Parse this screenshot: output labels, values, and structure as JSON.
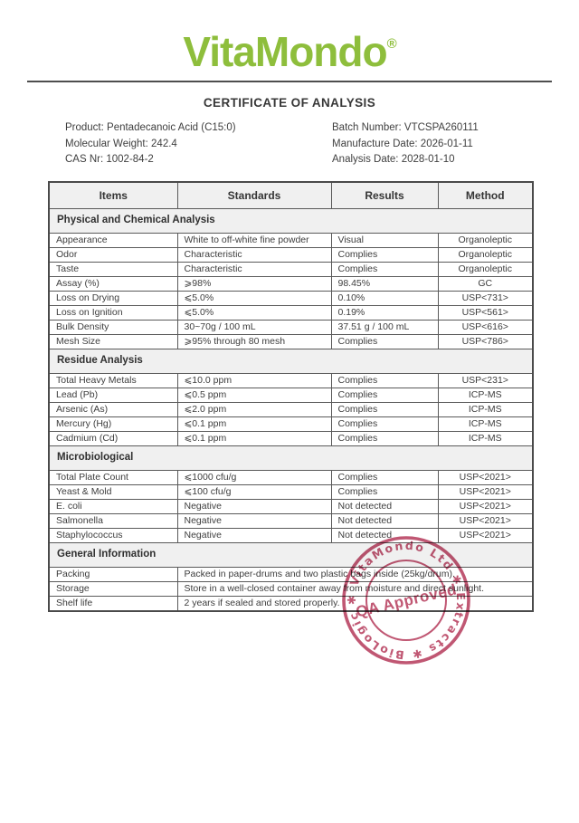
{
  "logo": {
    "text": "VitaMondo",
    "registered": "®",
    "color": "#8ebe3c"
  },
  "title": "CERTIFICATE OF ANALYSIS",
  "info": {
    "left": [
      "Product: Pentadecanoic Acid (C15:0)",
      "Molecular Weight: 242.4",
      "CAS Nr: 1002-84-2"
    ],
    "right": [
      "Batch Number: VTCSPA260111",
      "Manufacture Date: 2026-01-11",
      "Analysis Date: 2028-01-10"
    ]
  },
  "table": {
    "columns": [
      "Items",
      "Standards",
      "Results",
      "Method"
    ],
    "sections": [
      {
        "title": "Physical and Chemical Analysis",
        "rows": [
          [
            "Appearance",
            "White to off-white fine powder",
            "Visual",
            "Organoleptic"
          ],
          [
            "Odor",
            "Characteristic",
            "Complies",
            "Organoleptic"
          ],
          [
            "Taste",
            "Characteristic",
            "Complies",
            "Organoleptic"
          ],
          [
            "Assay (%)",
            "⩾98%",
            "98.45%",
            "GC"
          ],
          [
            "Loss on Drying",
            "⩽5.0%",
            "0.10%",
            "USP<731>"
          ],
          [
            "Loss on Ignition",
            "⩽5.0%",
            "0.19%",
            "USP<561>"
          ],
          [
            "Bulk Density",
            "30~70g / 100 mL",
            "37.51 g / 100 mL",
            "USP<616>"
          ],
          [
            "Mesh Size",
            "⩾95% through 80 mesh",
            "Complies",
            "USP<786>"
          ]
        ]
      },
      {
        "title": "Residue Analysis",
        "rows": [
          [
            "Total Heavy Metals",
            "⩽10.0 ppm",
            "Complies",
            "USP<231>"
          ],
          [
            "Lead (Pb)",
            "⩽0.5 ppm",
            "Complies",
            "ICP-MS"
          ],
          [
            "Arsenic (As)",
            "⩽2.0 ppm",
            "Complies",
            "ICP-MS"
          ],
          [
            "Mercury (Hg)",
            "⩽0.1 ppm",
            "Complies",
            "ICP-MS"
          ],
          [
            "Cadmium (Cd)",
            "⩽0.1 ppm",
            "Complies",
            "ICP-MS"
          ]
        ]
      },
      {
        "title": "Microbiological",
        "rows": [
          [
            "Total Plate Count",
            "⩽1000 cfu/g",
            "Complies",
            "USP<2021>"
          ],
          [
            "Yeast & Mold",
            "⩽100 cfu/g",
            "Complies",
            "USP<2021>"
          ],
          [
            "E. coli",
            "Negative",
            "Not detected",
            "USP<2021>"
          ],
          [
            "Salmonella",
            "Negative",
            "Not detected",
            "USP<2021>"
          ],
          [
            "Staphylococcus",
            "Negative",
            "Not detected",
            "USP<2021>"
          ]
        ]
      },
      {
        "title": "General Information",
        "merged": true,
        "rows": [
          [
            "Packing",
            "Packed in paper-drums and two plastic bags inside (25kg/drum)."
          ],
          [
            "Storage",
            "Store in a well-closed container away from moisture and direct sunlight."
          ],
          [
            "Shelf life",
            "2 years if sealed and stored properly."
          ]
        ]
      }
    ]
  },
  "stamp": {
    "ring_text": "VitaMondo Ltd ✱ Extracts ✱ BioLogic ✱",
    "center_text": "QA Approved",
    "color": "#b8405f"
  }
}
